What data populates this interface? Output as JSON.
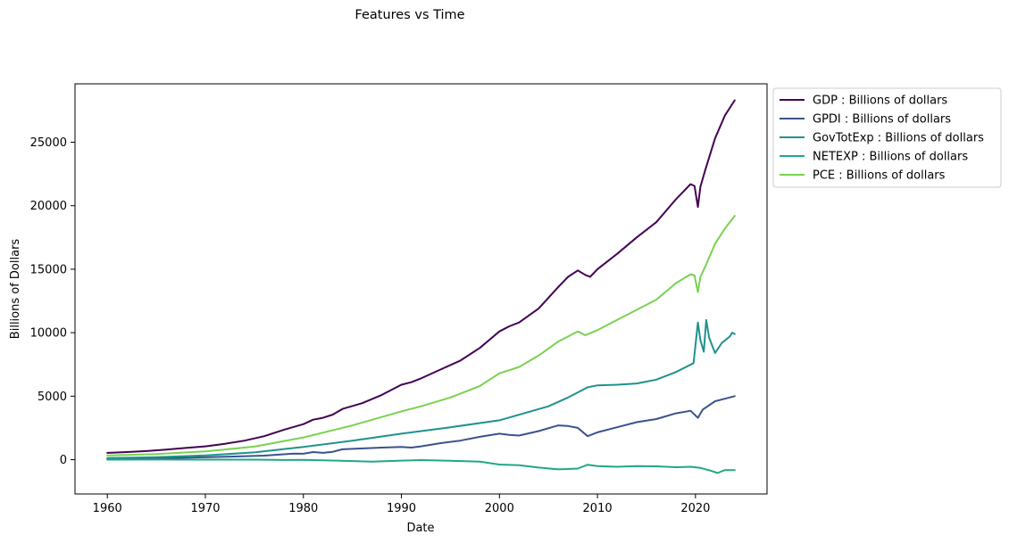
{
  "chart_data": {
    "type": "line",
    "title": "Features vs Time",
    "xlabel": "Date",
    "ylabel": "Billions of Dollars",
    "xlim": [
      1956.7,
      2027.3
    ],
    "ylim": [
      -2700,
      29600
    ],
    "xticks": [
      1960,
      1970,
      1980,
      1990,
      2000,
      2010,
      2020
    ],
    "yticks": [
      0,
      5000,
      10000,
      15000,
      20000,
      25000
    ],
    "grid": false,
    "legend_position": "outside-upper-right",
    "series": [
      {
        "name": "GDP : Billions of dollars",
        "color": "#440154",
        "points": [
          [
            1960,
            540
          ],
          [
            1962,
            600
          ],
          [
            1964,
            680
          ],
          [
            1966,
            800
          ],
          [
            1968,
            920
          ],
          [
            1970,
            1050
          ],
          [
            1972,
            1250
          ],
          [
            1974,
            1500
          ],
          [
            1976,
            1850
          ],
          [
            1978,
            2350
          ],
          [
            1980,
            2800
          ],
          [
            1981,
            3150
          ],
          [
            1982,
            3300
          ],
          [
            1983,
            3550
          ],
          [
            1984,
            4000
          ],
          [
            1986,
            4450
          ],
          [
            1988,
            5100
          ],
          [
            1990,
            5900
          ],
          [
            1991,
            6100
          ],
          [
            1992,
            6400
          ],
          [
            1994,
            7100
          ],
          [
            1996,
            7800
          ],
          [
            1998,
            8800
          ],
          [
            2000,
            10100
          ],
          [
            2001,
            10500
          ],
          [
            2002,
            10800
          ],
          [
            2004,
            11900
          ],
          [
            2006,
            13600
          ],
          [
            2007,
            14400
          ],
          [
            2008,
            14900
          ],
          [
            2008.75,
            14550
          ],
          [
            2009.25,
            14400
          ],
          [
            2010,
            15000
          ],
          [
            2012,
            16200
          ],
          [
            2014,
            17500
          ],
          [
            2016,
            18700
          ],
          [
            2018,
            20500
          ],
          [
            2019.5,
            21700
          ],
          [
            2019.9,
            21550
          ],
          [
            2020.25,
            19900
          ],
          [
            2020.5,
            21500
          ],
          [
            2021,
            22800
          ],
          [
            2022,
            25300
          ],
          [
            2023,
            27100
          ],
          [
            2024,
            28300
          ]
        ]
      },
      {
        "name": "GPDI : Billions of dollars",
        "color": "#3b528b",
        "points": [
          [
            1960,
            80
          ],
          [
            1964,
            110
          ],
          [
            1968,
            150
          ],
          [
            1972,
            230
          ],
          [
            1976,
            320
          ],
          [
            1979,
            480
          ],
          [
            1980,
            470
          ],
          [
            1981,
            600
          ],
          [
            1982,
            540
          ],
          [
            1983,
            620
          ],
          [
            1984,
            820
          ],
          [
            1988,
            950
          ],
          [
            1990,
            1000
          ],
          [
            1991,
            950
          ],
          [
            1992,
            1050
          ],
          [
            1994,
            1300
          ],
          [
            1996,
            1500
          ],
          [
            1998,
            1800
          ],
          [
            2000,
            2050
          ],
          [
            2001,
            1950
          ],
          [
            2002,
            1900
          ],
          [
            2004,
            2250
          ],
          [
            2006,
            2700
          ],
          [
            2007,
            2650
          ],
          [
            2008,
            2500
          ],
          [
            2009,
            1850
          ],
          [
            2010,
            2150
          ],
          [
            2012,
            2550
          ],
          [
            2014,
            2950
          ],
          [
            2016,
            3200
          ],
          [
            2018,
            3650
          ],
          [
            2019.5,
            3850
          ],
          [
            2020.25,
            3300
          ],
          [
            2020.75,
            3950
          ],
          [
            2022,
            4600
          ],
          [
            2023,
            4800
          ],
          [
            2024,
            5000
          ]
        ]
      },
      {
        "name": "GovTotExp : Billions of dollars",
        "color": "#21918c",
        "points": [
          [
            1960,
            130
          ],
          [
            1965,
            200
          ],
          [
            1970,
            330
          ],
          [
            1975,
            570
          ],
          [
            1980,
            1000
          ],
          [
            1985,
            1500
          ],
          [
            1990,
            2050
          ],
          [
            1995,
            2550
          ],
          [
            2000,
            3100
          ],
          [
            2005,
            4200
          ],
          [
            2007,
            4900
          ],
          [
            2008,
            5300
          ],
          [
            2009,
            5700
          ],
          [
            2010,
            5850
          ],
          [
            2012,
            5900
          ],
          [
            2014,
            6000
          ],
          [
            2016,
            6300
          ],
          [
            2018,
            6900
          ],
          [
            2019.8,
            7600
          ],
          [
            2020.25,
            10800
          ],
          [
            2020.5,
            9400
          ],
          [
            2020.85,
            8500
          ],
          [
            2021.1,
            11000
          ],
          [
            2021.4,
            9600
          ],
          [
            2022,
            8400
          ],
          [
            2022.7,
            9200
          ],
          [
            2023.5,
            9700
          ],
          [
            2023.75,
            10000
          ],
          [
            2024,
            9900
          ]
        ]
      },
      {
        "name": "NETEXP : Billions of dollars",
        "color": "#22a784",
        "points": [
          [
            1960,
            5
          ],
          [
            1965,
            10
          ],
          [
            1970,
            5
          ],
          [
            1975,
            0
          ],
          [
            1978,
            -25
          ],
          [
            1980,
            -15
          ],
          [
            1985,
            -110
          ],
          [
            1987,
            -150
          ],
          [
            1990,
            -75
          ],
          [
            1992,
            -30
          ],
          [
            1995,
            -90
          ],
          [
            1998,
            -160
          ],
          [
            2000,
            -380
          ],
          [
            2002,
            -440
          ],
          [
            2004,
            -620
          ],
          [
            2006,
            -760
          ],
          [
            2008,
            -700
          ],
          [
            2009,
            -400
          ],
          [
            2010,
            -500
          ],
          [
            2012,
            -560
          ],
          [
            2014,
            -510
          ],
          [
            2016,
            -520
          ],
          [
            2018,
            -590
          ],
          [
            2019.5,
            -560
          ],
          [
            2020.5,
            -650
          ],
          [
            2021.5,
            -850
          ],
          [
            2022.25,
            -1050
          ],
          [
            2023,
            -820
          ],
          [
            2024,
            -820
          ]
        ]
      },
      {
        "name": "PCE : Billions of dollars",
        "color": "#7ad151",
        "points": [
          [
            1960,
            330
          ],
          [
            1965,
            440
          ],
          [
            1970,
            650
          ],
          [
            1975,
            1030
          ],
          [
            1980,
            1750
          ],
          [
            1985,
            2700
          ],
          [
            1990,
            3800
          ],
          [
            1992,
            4200
          ],
          [
            1995,
            4900
          ],
          [
            1998,
            5800
          ],
          [
            2000,
            6800
          ],
          [
            2002,
            7300
          ],
          [
            2004,
            8200
          ],
          [
            2006,
            9300
          ],
          [
            2008,
            10100
          ],
          [
            2008.75,
            9800
          ],
          [
            2010,
            10200
          ],
          [
            2012,
            11000
          ],
          [
            2014,
            11800
          ],
          [
            2016,
            12600
          ],
          [
            2018,
            13900
          ],
          [
            2019.5,
            14600
          ],
          [
            2019.9,
            14500
          ],
          [
            2020.25,
            13200
          ],
          [
            2020.5,
            14400
          ],
          [
            2021,
            15200
          ],
          [
            2022,
            17000
          ],
          [
            2023,
            18200
          ],
          [
            2024,
            19200
          ]
        ]
      }
    ]
  }
}
